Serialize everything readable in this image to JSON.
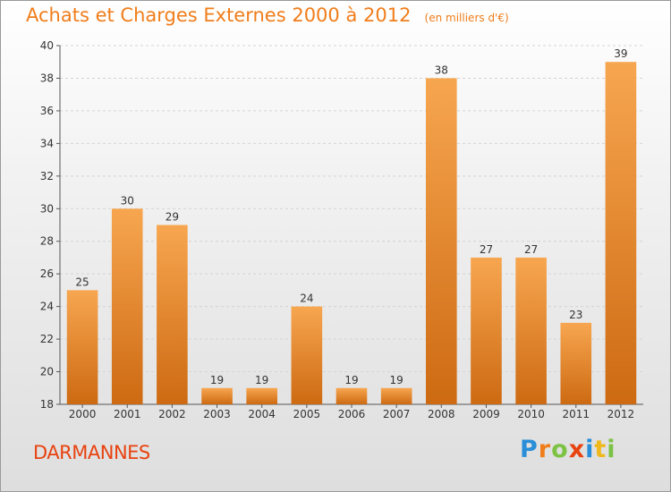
{
  "header": {
    "title": "Achats et Charges Externes 2000 à 2012",
    "unit": "(en milliers d'€)"
  },
  "footer": {
    "commune": "DARMANNES",
    "logo": {
      "letters": [
        "P",
        "r",
        "o",
        "x",
        "i",
        "t",
        "i"
      ],
      "colors": [
        "#2a8fd8",
        "#f07d1a",
        "#7cc243",
        "#e8420f",
        "#2a8fd8",
        "#f0b81a",
        "#7cc243"
      ]
    }
  },
  "chart_data": {
    "type": "bar",
    "categories": [
      "2000",
      "2001",
      "2002",
      "2003",
      "2004",
      "2005",
      "2006",
      "2007",
      "2008",
      "2009",
      "2010",
      "2011",
      "2012"
    ],
    "values": [
      25,
      30,
      29,
      19,
      19,
      24,
      19,
      19,
      38,
      27,
      27,
      23,
      39
    ],
    "title": "Achats et Charges Externes 2000 à 2012",
    "subtitle": "(en milliers d'€)",
    "xlabel": "",
    "ylabel": "",
    "ylim": [
      18,
      40
    ],
    "yticks": [
      18,
      20,
      22,
      24,
      26,
      28,
      30,
      32,
      34,
      36,
      38,
      40
    ],
    "grid": true,
    "colors": {
      "bar_top": "#f7a650",
      "bar_bottom": "#cd6a12",
      "grid": "#d4d4d4",
      "axis": "#555555"
    }
  }
}
